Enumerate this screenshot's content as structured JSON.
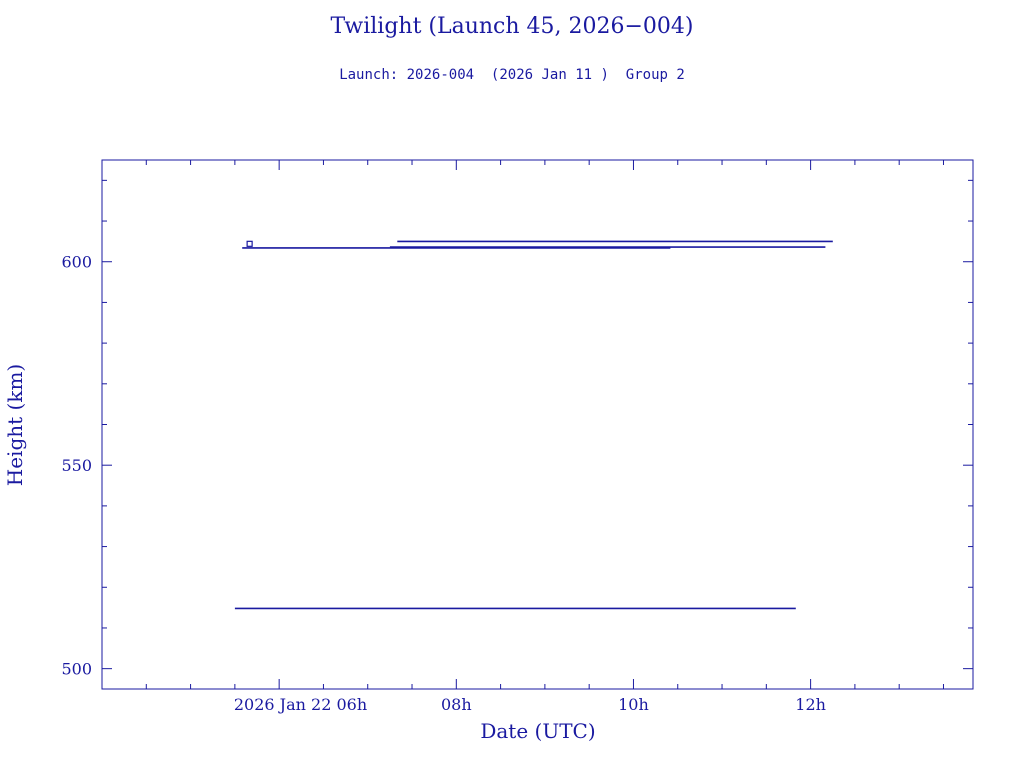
{
  "title": "Twilight (Launch 45, 2026−004)",
  "subtitle": "Launch: 2026-004  (2026 Jan 11 )  Group 2",
  "chart_data": {
    "type": "line",
    "title": "Twilight (Launch 45, 2026−004)",
    "subtitle": "Launch: 2026-004  (2026 Jan 11 )  Group 2",
    "xlabel": "Date (UTC)",
    "ylabel": "Height (km)",
    "xlim": [
      "2026-01-22 04:00",
      "2026-01-22 13:50"
    ],
    "ylim": [
      495,
      625
    ],
    "x_ticks": [
      {
        "x": "2026-01-22 06:00",
        "label": "2026 Jan 22  06h"
      },
      {
        "x": "2026-01-22 08:00",
        "label": "08h"
      },
      {
        "x": "2026-01-22 10:00",
        "label": "10h"
      },
      {
        "x": "2026-01-22 12:00",
        "label": "12h"
      }
    ],
    "y_ticks": [
      500,
      550,
      600
    ],
    "series": [
      {
        "x": [
          "2026-01-22 05:30",
          "2026-01-22 11:50"
        ],
        "y": [
          514.8,
          514.8
        ]
      },
      {
        "x": [
          "2026-01-22 05:35",
          "2026-01-22 10:25"
        ],
        "y": [
          603.4,
          603.4
        ]
      },
      {
        "x": [
          "2026-01-22 07:15",
          "2026-01-22 12:10"
        ],
        "y": [
          603.6,
          603.6
        ]
      },
      {
        "x": [
          "2026-01-22 07:20",
          "2026-01-22 12:15"
        ],
        "y": [
          605.0,
          605.0
        ]
      },
      {
        "x": [
          "2026-01-22 05:40"
        ],
        "y": [
          604.4
        ],
        "marker": "square"
      }
    ],
    "colors": {
      "foreground": "#1a1aa0"
    }
  }
}
